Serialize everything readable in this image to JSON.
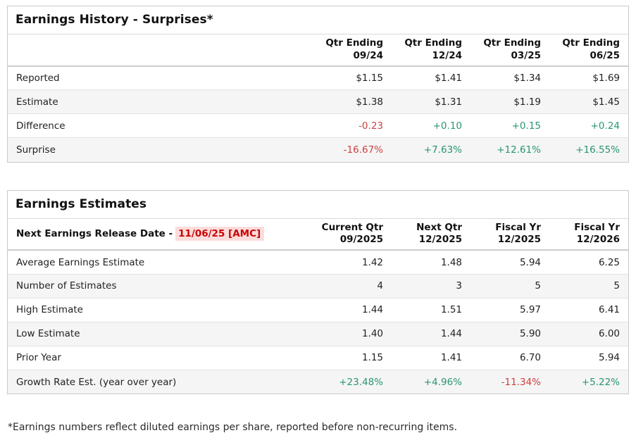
{
  "colors": {
    "positive": "#28966f",
    "negative": "#cc3f3f",
    "release_date_text": "#cc0000",
    "release_date_bg": "#fcdcdc"
  },
  "surprises_table": {
    "title": "Earnings History - Surprises*",
    "columns": [
      {
        "line1": "Qtr Ending",
        "line2": "09/24"
      },
      {
        "line1": "Qtr Ending",
        "line2": "12/24"
      },
      {
        "line1": "Qtr Ending",
        "line2": "03/25"
      },
      {
        "line1": "Qtr Ending",
        "line2": "06/25"
      }
    ],
    "rows": [
      {
        "label": "Reported",
        "values": [
          "$1.15",
          "$1.41",
          "$1.34",
          "$1.69"
        ],
        "tones": [
          "",
          "",
          "",
          ""
        ]
      },
      {
        "label": "Estimate",
        "values": [
          "$1.38",
          "$1.31",
          "$1.19",
          "$1.45"
        ],
        "tones": [
          "",
          "",
          "",
          ""
        ]
      },
      {
        "label": "Difference",
        "values": [
          "-0.23",
          "+0.10",
          "+0.15",
          "+0.24"
        ],
        "tones": [
          "negative",
          "positive",
          "positive",
          "positive"
        ]
      },
      {
        "label": "Surprise",
        "values": [
          "-16.67%",
          "+7.63%",
          "+12.61%",
          "+16.55%"
        ],
        "tones": [
          "negative",
          "positive",
          "positive",
          "positive"
        ]
      }
    ]
  },
  "estimates_table": {
    "title": "Earnings Estimates",
    "release_label": "Next Earnings Release Date -",
    "release_date": "11/06/25 [AMC]",
    "columns": [
      {
        "line1": "Current Qtr",
        "line2": "09/2025"
      },
      {
        "line1": "Next Qtr",
        "line2": "12/2025"
      },
      {
        "line1": "Fiscal Yr",
        "line2": "12/2025"
      },
      {
        "line1": "Fiscal Yr",
        "line2": "12/2026"
      }
    ],
    "rows": [
      {
        "label": "Average Earnings Estimate",
        "values": [
          "1.42",
          "1.48",
          "5.94",
          "6.25"
        ],
        "tones": [
          "",
          "",
          "",
          ""
        ]
      },
      {
        "label": "Number of Estimates",
        "values": [
          "4",
          "3",
          "5",
          "5"
        ],
        "tones": [
          "",
          "",
          "",
          ""
        ]
      },
      {
        "label": "High Estimate",
        "values": [
          "1.44",
          "1.51",
          "5.97",
          "6.41"
        ],
        "tones": [
          "",
          "",
          "",
          ""
        ]
      },
      {
        "label": "Low Estimate",
        "values": [
          "1.40",
          "1.44",
          "5.90",
          "6.00"
        ],
        "tones": [
          "",
          "",
          "",
          ""
        ]
      },
      {
        "label": "Prior Year",
        "values": [
          "1.15",
          "1.41",
          "6.70",
          "5.94"
        ],
        "tones": [
          "",
          "",
          "",
          ""
        ]
      },
      {
        "label": "Growth Rate Est. (year over year)",
        "values": [
          "+23.48%",
          "+4.96%",
          "-11.34%",
          "+5.22%"
        ],
        "tones": [
          "positive",
          "positive",
          "negative",
          "positive"
        ]
      }
    ]
  },
  "footnote": "*Earnings numbers reflect diluted earnings per share, reported before non-recurring items."
}
